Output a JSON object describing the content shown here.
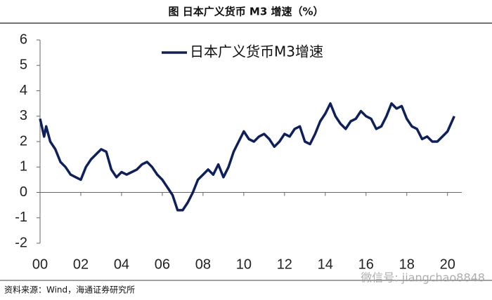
{
  "chart_data": {
    "type": "line",
    "title": "图 日本广义货币 M3 增速（%）",
    "source": "资料来源：Wind，海通证券研究所",
    "watermark": "微信号: jiangchao8848",
    "x": [
      2000.0,
      2000.2,
      2000.3,
      2000.5,
      2000.75,
      2001.0,
      2001.25,
      2001.5,
      2001.75,
      2002.0,
      2002.25,
      2002.5,
      2002.75,
      2003.0,
      2003.25,
      2003.5,
      2003.75,
      2004.0,
      2004.25,
      2004.5,
      2004.75,
      2005.0,
      2005.25,
      2005.5,
      2005.75,
      2006.0,
      2006.25,
      2006.5,
      2006.75,
      2007.0,
      2007.25,
      2007.5,
      2007.75,
      2008.0,
      2008.25,
      2008.5,
      2008.75,
      2009.0,
      2009.25,
      2009.5,
      2009.75,
      2010.0,
      2010.25,
      2010.5,
      2010.75,
      2011.0,
      2011.25,
      2011.5,
      2011.75,
      2012.0,
      2012.25,
      2012.5,
      2012.75,
      2013.0,
      2013.25,
      2013.5,
      2013.75,
      2014.0,
      2014.25,
      2014.5,
      2014.75,
      2015.0,
      2015.25,
      2015.5,
      2015.75,
      2016.0,
      2016.25,
      2016.5,
      2016.75,
      2017.0,
      2017.25,
      2017.5,
      2017.75,
      2018.0,
      2018.25,
      2018.5,
      2018.75,
      2019.0,
      2019.25,
      2019.5,
      2019.75,
      2020.0,
      2020.33
    ],
    "series": [
      {
        "name": "日本广义货币M3增速",
        "color": "#0d1f5c",
        "values": [
          2.9,
          2.2,
          2.6,
          2.0,
          1.7,
          1.2,
          1.0,
          0.7,
          0.6,
          0.5,
          1.0,
          1.3,
          1.5,
          1.7,
          1.6,
          0.9,
          0.6,
          0.8,
          0.7,
          0.8,
          0.9,
          1.1,
          1.2,
          1.0,
          0.7,
          0.5,
          0.2,
          -0.1,
          -0.7,
          -0.7,
          -0.4,
          0.0,
          0.5,
          0.7,
          0.9,
          0.7,
          1.1,
          0.6,
          1.0,
          1.6,
          2.0,
          2.4,
          2.1,
          2.0,
          2.2,
          2.3,
          2.1,
          1.8,
          2.0,
          2.3,
          2.2,
          2.5,
          2.6,
          2.0,
          1.9,
          2.3,
          2.8,
          3.1,
          3.5,
          3.0,
          2.7,
          2.5,
          2.8,
          2.9,
          3.2,
          3.0,
          2.9,
          2.5,
          2.6,
          3.0,
          3.5,
          3.3,
          3.4,
          2.9,
          2.6,
          2.5,
          2.1,
          2.2,
          2.0,
          2.0,
          2.2,
          2.4,
          3.0
        ]
      }
    ],
    "xlim": [
      2000,
      2020.7
    ],
    "xticks": [
      {
        "value": 2000,
        "label": "00"
      },
      {
        "value": 2002,
        "label": "02"
      },
      {
        "value": 2004,
        "label": "04"
      },
      {
        "value": 2006,
        "label": "06"
      },
      {
        "value": 2008,
        "label": "08"
      },
      {
        "value": 2010,
        "label": "10"
      },
      {
        "value": 2012,
        "label": "12"
      },
      {
        "value": 2014,
        "label": "14"
      },
      {
        "value": 2016,
        "label": "16"
      },
      {
        "value": 2018,
        "label": "18"
      },
      {
        "value": 2020,
        "label": "20"
      }
    ],
    "ylim": [
      -2,
      6
    ],
    "yticks": [
      -2,
      -1,
      0,
      1,
      2,
      3,
      4,
      5,
      6
    ],
    "legend": "upper left"
  }
}
